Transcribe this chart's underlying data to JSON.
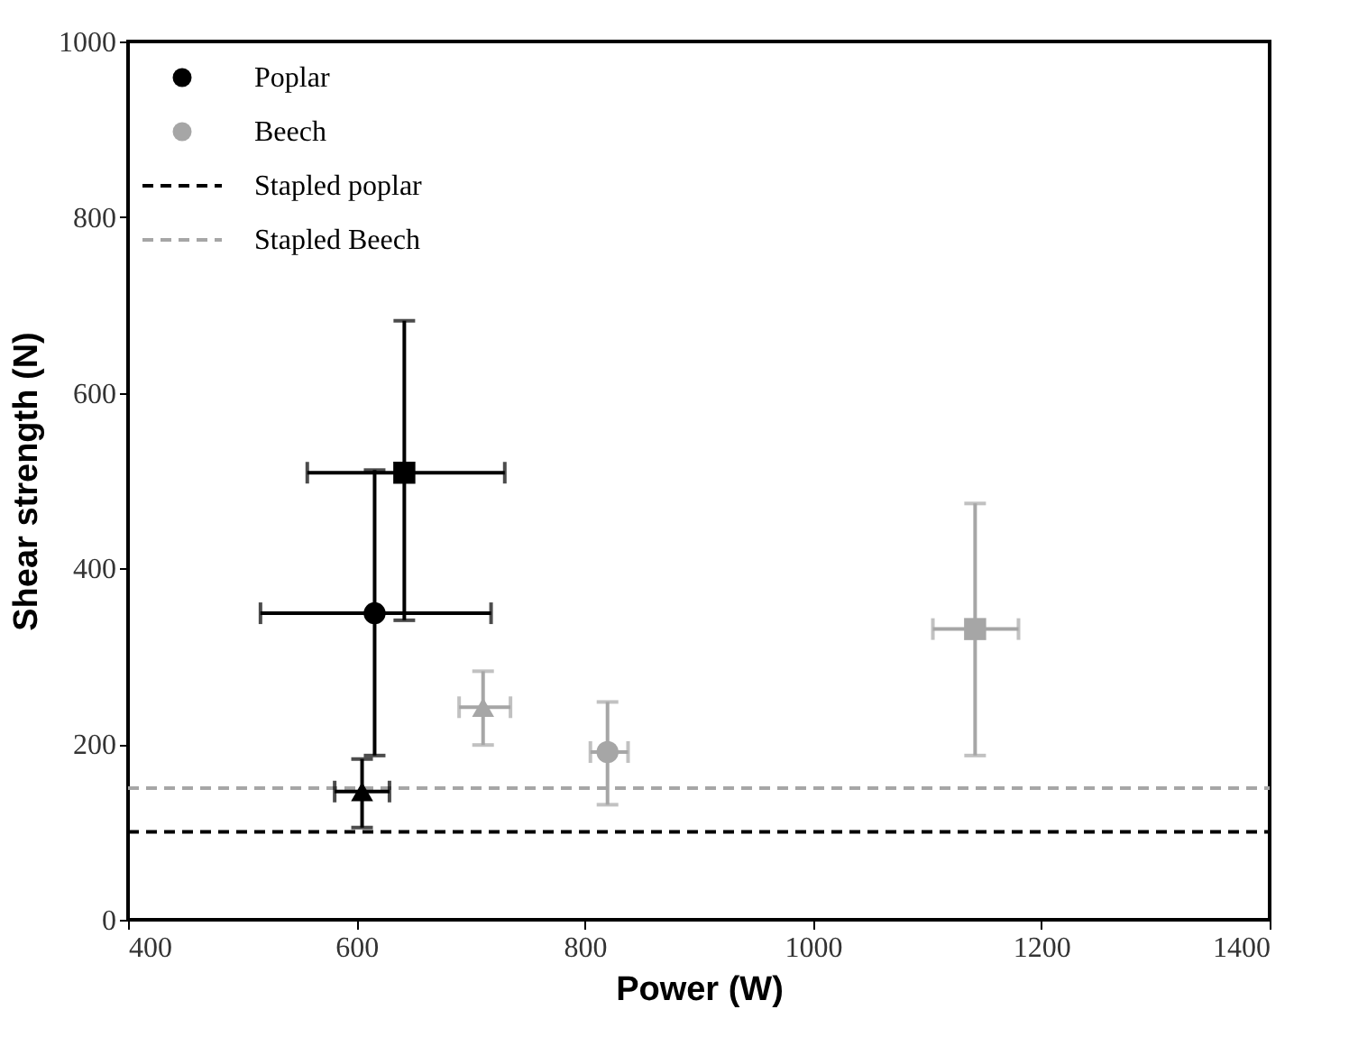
{
  "chart_data": {
    "type": "scatter",
    "xlabel": "Power (W)",
    "ylabel": "Shear strength (N)",
    "xlim": [
      400,
      1400
    ],
    "xticks": [
      400,
      600,
      800,
      1000,
      1200,
      1400
    ],
    "ylim": [
      0,
      1000
    ],
    "yticks": [
      0,
      200,
      400,
      600,
      800,
      1000
    ],
    "grid": false,
    "legend": "top left",
    "series": [
      {
        "name": "Poplar",
        "color": "#000000",
        "marker": "circle",
        "x": [
          616
        ],
        "values": [
          349
        ],
        "errors": [
          [
            187,
            512
          ]
        ],
        "xerrors": [
          [
            516,
            718
          ]
        ]
      },
      {
        "color": "#000000",
        "marker": "square",
        "x": [
          642
        ],
        "values": [
          509
        ],
        "errors": [
          [
            341,
            682
          ]
        ],
        "xerrors": [
          [
            557,
            730
          ]
        ]
      },
      {
        "color": "#000000",
        "marker": "triangle",
        "x": [
          605
        ],
        "values": [
          146
        ],
        "errors": [
          [
            105,
            183
          ]
        ],
        "xerrors": [
          [
            581,
            629
          ]
        ]
      },
      {
        "name": "Beech",
        "color": "#a6a6a6",
        "marker": "circle",
        "x": [
          820
        ],
        "values": [
          191
        ],
        "errors": [
          [
            131,
            248
          ]
        ],
        "xerrors": [
          [
            805,
            838
          ]
        ]
      },
      {
        "color": "#a6a6a6",
        "marker": "square",
        "x": [
          1142
        ],
        "values": [
          331
        ],
        "errors": [
          [
            187,
            474
          ]
        ],
        "xerrors": [
          [
            1105,
            1180
          ]
        ]
      },
      {
        "color": "#a6a6a6",
        "marker": "triangle",
        "x": [
          711
        ],
        "values": [
          242
        ],
        "errors": [
          [
            199,
            283
          ]
        ],
        "xerrors": [
          [
            690,
            735
          ]
        ]
      }
    ],
    "ref_lines": [
      {
        "axis": "y",
        "value": 100,
        "label": "Stapled poplar",
        "color": "#000000",
        "line_style": "dashed"
      },
      {
        "axis": "y",
        "value": 150,
        "label": "Stapled Beech",
        "color": "#a6a6a6",
        "line_style": "dashed"
      }
    ]
  }
}
